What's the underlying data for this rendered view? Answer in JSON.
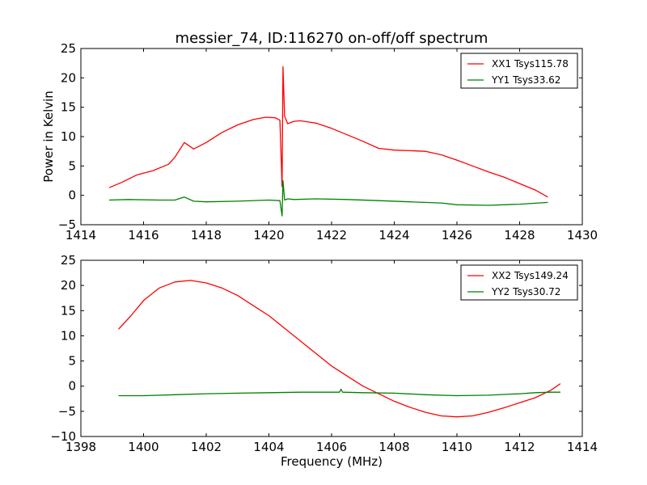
{
  "chart_data": [
    {
      "type": "line",
      "title": "messier_74, ID:116270 on-off/off spectrum",
      "xlabel": "",
      "ylabel": "Power in Kelvin",
      "xlim": [
        1414,
        1430
      ],
      "ylim": [
        -5,
        25
      ],
      "xticks": [
        1414,
        1416,
        1418,
        1420,
        1422,
        1424,
        1426,
        1428,
        1430
      ],
      "yticks": [
        -5,
        0,
        5,
        10,
        15,
        20,
        25
      ],
      "legend_position": "top-right",
      "grid": false,
      "series": [
        {
          "name": "XX1 Tsys115.78",
          "color": "#ff0000",
          "x": [
            1414.9,
            1415.3,
            1415.8,
            1416.3,
            1416.8,
            1417.0,
            1417.3,
            1417.6,
            1418.0,
            1418.5,
            1419.0,
            1419.5,
            1419.9,
            1420.2,
            1420.35,
            1420.42,
            1420.45,
            1420.5,
            1420.6,
            1420.8,
            1421.0,
            1421.5,
            1422.0,
            1422.5,
            1423.0,
            1423.5,
            1424.0,
            1424.5,
            1425.0,
            1425.5,
            1426.0,
            1426.5,
            1427.0,
            1427.5,
            1428.0,
            1428.5,
            1428.9
          ],
          "y": [
            1.3,
            2.2,
            3.5,
            4.2,
            5.3,
            6.5,
            9.0,
            7.9,
            9.0,
            10.7,
            12.0,
            12.9,
            13.3,
            13.2,
            12.8,
            1.5,
            21.9,
            13.5,
            12.2,
            12.6,
            12.7,
            12.3,
            11.4,
            10.3,
            9.2,
            8.0,
            7.7,
            7.6,
            7.5,
            6.9,
            6.0,
            5.0,
            4.0,
            3.1,
            2.0,
            0.9,
            -0.3
          ]
        },
        {
          "name": "YY1 Tsys33.62",
          "color": "#008000",
          "x": [
            1414.9,
            1415.5,
            1416.5,
            1417.0,
            1417.3,
            1417.6,
            1418.0,
            1419.0,
            1420.0,
            1420.35,
            1420.42,
            1420.45,
            1420.5,
            1420.6,
            1420.8,
            1421.5,
            1422.5,
            1423.5,
            1424.5,
            1425.5,
            1426.0,
            1427.0,
            1428.0,
            1428.9
          ],
          "y": [
            -0.8,
            -0.7,
            -0.8,
            -0.8,
            -0.3,
            -1.0,
            -1.1,
            -1.0,
            -0.8,
            -0.9,
            -3.5,
            2.5,
            -0.8,
            -0.6,
            -0.7,
            -0.6,
            -0.7,
            -0.9,
            -1.1,
            -1.3,
            -1.6,
            -1.7,
            -1.5,
            -1.2
          ]
        }
      ]
    },
    {
      "type": "line",
      "title": "",
      "xlabel": "Frequency (MHz)",
      "ylabel": "",
      "xlim": [
        1398,
        1414
      ],
      "ylim": [
        -10,
        25
      ],
      "xticks": [
        1398,
        1400,
        1402,
        1404,
        1406,
        1408,
        1410,
        1412,
        1414
      ],
      "yticks": [
        -10,
        -5,
        0,
        5,
        10,
        15,
        20,
        25
      ],
      "legend_position": "top-right",
      "grid": false,
      "series": [
        {
          "name": "XX2 Tsys149.24",
          "color": "#ff0000",
          "x": [
            1399.2,
            1399.6,
            1400.0,
            1400.5,
            1401.0,
            1401.5,
            1402.0,
            1402.5,
            1403.0,
            1403.5,
            1404.0,
            1404.5,
            1405.0,
            1405.5,
            1406.0,
            1406.5,
            1407.0,
            1407.5,
            1408.0,
            1408.5,
            1409.0,
            1409.5,
            1410.0,
            1410.5,
            1411.0,
            1411.5,
            1412.0,
            1412.5,
            1413.0,
            1413.3
          ],
          "y": [
            11.3,
            14.0,
            17.0,
            19.5,
            20.7,
            21.0,
            20.5,
            19.5,
            18.0,
            16.0,
            14.0,
            11.5,
            9.0,
            6.5,
            4.0,
            2.0,
            0.0,
            -1.5,
            -3.0,
            -4.2,
            -5.2,
            -5.9,
            -6.1,
            -5.9,
            -5.2,
            -4.3,
            -3.3,
            -2.3,
            -0.8,
            0.5
          ]
        },
        {
          "name": "YY2 Tsys30.72",
          "color": "#008000",
          "x": [
            1399.2,
            1400.0,
            1401.0,
            1402.0,
            1403.0,
            1404.0,
            1405.0,
            1406.0,
            1406.25,
            1406.3,
            1406.35,
            1407.0,
            1408.0,
            1409.0,
            1410.0,
            1411.0,
            1412.0,
            1412.5,
            1413.0,
            1413.3
          ],
          "y": [
            -1.9,
            -1.9,
            -1.7,
            -1.5,
            -1.4,
            -1.3,
            -1.2,
            -1.2,
            -1.2,
            -0.6,
            -1.2,
            -1.3,
            -1.4,
            -1.7,
            -1.9,
            -1.8,
            -1.5,
            -1.3,
            -1.2,
            -1.2
          ]
        }
      ]
    }
  ]
}
